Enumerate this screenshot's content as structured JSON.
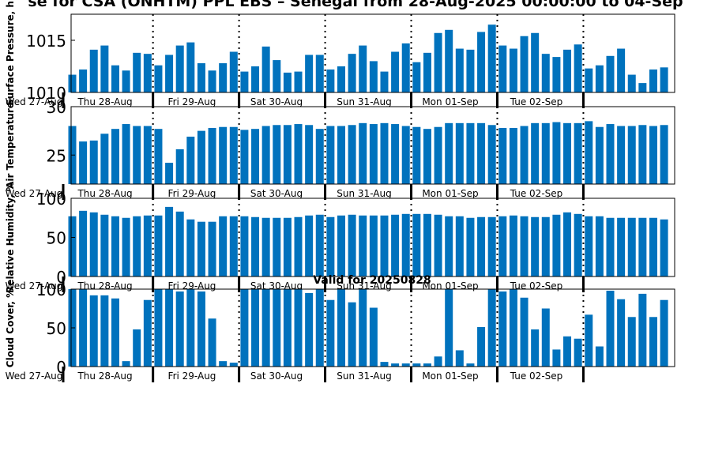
{
  "title": "se for CSA (ONHTM) PPL EBS – Senegal from 28-Aug-2025 00:00:00 to 04-Sep",
  "valid_label": "Valid for 20250828",
  "colors": {
    "bar": "#0072BD",
    "axis": "#000000",
    "background": "#ffffff"
  },
  "chart_data": [
    {
      "type": "bar",
      "ylabel": "Surface Pressure, h",
      "ylim": [
        1010,
        1017.5
      ],
      "yticks": [
        1010,
        1015
      ],
      "x_labels": [
        "Wed 27-Aug",
        "Thu 28-Aug",
        "Fri 29-Aug",
        "Sat 30-Aug",
        "Sun 31-Aug",
        "Mon 01-Sep",
        "Tue 02-Sep"
      ],
      "values": [
        1011.7,
        1012.2,
        1014.1,
        1014.5,
        1012.6,
        1012.1,
        1013.8,
        1013.7,
        1012.6,
        1013.6,
        1014.5,
        1014.8,
        1012.8,
        1012.1,
        1012.8,
        1013.9,
        1012.0,
        1012.5,
        1014.4,
        1013.1,
        1011.9,
        1012.0,
        1013.6,
        1013.6,
        1012.2,
        1012.5,
        1013.7,
        1014.5,
        1013.0,
        1012.0,
        1013.9,
        1014.7,
        1012.9,
        1013.8,
        1015.7,
        1016.0,
        1014.2,
        1014.1,
        1015.8,
        1016.5,
        1014.5,
        1014.2,
        1015.4,
        1015.7,
        1013.7,
        1013.4,
        1014.1,
        1014.6,
        1012.3,
        1012.6,
        1013.5,
        1014.2,
        1011.7,
        1010.9,
        1012.2,
        1012.4
      ]
    },
    {
      "type": "bar",
      "ylabel": "Air Temperature",
      "ylim": [
        22,
        30
      ],
      "yticks": [
        25,
        30
      ],
      "x_labels": [
        "Wed 27-Aug",
        "Thu 28-Aug",
        "Fri 29-Aug",
        "Sat 30-Aug",
        "Sun 31-Aug",
        "Mon 01-Sep",
        "Tue 02-Sep"
      ],
      "values": [
        28.0,
        26.4,
        26.5,
        27.2,
        27.7,
        28.2,
        28.0,
        28.0,
        27.7,
        24.2,
        25.6,
        26.9,
        27.5,
        27.8,
        27.9,
        27.9,
        27.6,
        27.7,
        28.0,
        28.1,
        28.1,
        28.2,
        28.1,
        27.7,
        28.0,
        28.0,
        28.1,
        28.3,
        28.2,
        28.3,
        28.2,
        28.0,
        27.9,
        27.7,
        27.9,
        28.3,
        28.3,
        28.3,
        28.3,
        28.1,
        27.8,
        27.8,
        28.0,
        28.3,
        28.3,
        28.4,
        28.3,
        28.3,
        28.5,
        27.9,
        28.2,
        28.0,
        28.0,
        28.1,
        28.0,
        28.1
      ]
    },
    {
      "type": "bar",
      "ylabel": "Relative Humidity, %",
      "ylim": [
        0,
        100
      ],
      "yticks": [
        0,
        50,
        100
      ],
      "x_labels": [
        "Wed 27-Aug",
        "Thu 28-Aug",
        "Fri 29-Aug",
        "Sat 30-Aug",
        "Sun 31-Aug",
        "Mon 01-Sep",
        "Tue 02-Sep"
      ],
      "values": [
        77,
        84,
        82,
        79,
        77,
        75,
        77,
        78,
        78,
        89,
        83,
        73,
        70,
        70,
        77,
        77,
        77,
        76,
        75,
        75,
        75,
        76,
        78,
        79,
        76,
        78,
        79,
        78,
        78,
        78,
        79,
        80,
        80,
        80,
        79,
        77,
        77,
        75,
        76,
        76,
        77,
        78,
        77,
        76,
        76,
        79,
        82,
        80,
        77,
        77,
        75,
        75,
        75,
        75,
        75,
        73
      ]
    },
    {
      "type": "bar",
      "ylabel": "Cloud Cover, %",
      "ylim": [
        0,
        100
      ],
      "yticks": [
        0,
        50,
        100
      ],
      "x_labels": [
        "Wed 27-Aug",
        "Thu 28-Aug",
        "Fri 29-Aug",
        "Sat 30-Aug",
        "Sun 31-Aug",
        "Mon 01-Sep",
        "Tue 02-Sep"
      ],
      "values": [
        100,
        100,
        92,
        92,
        88,
        7,
        48,
        86,
        100,
        100,
        97,
        100,
        97,
        62,
        7,
        5,
        100,
        100,
        100,
        100,
        100,
        100,
        95,
        100,
        86,
        100,
        83,
        100,
        76,
        6,
        4,
        4,
        4,
        4,
        13,
        100,
        21,
        4,
        51,
        100,
        97,
        100,
        89,
        48,
        75,
        22,
        39,
        36,
        67,
        26,
        98,
        87,
        64,
        94,
        64,
        86
      ]
    }
  ]
}
